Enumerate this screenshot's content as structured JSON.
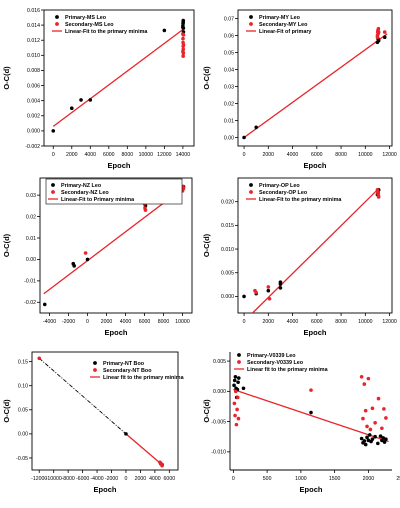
{
  "chart_data": [
    {
      "type": "scatter",
      "xlabel": "Epoch",
      "ylabel": "O-C(d)",
      "xlim": [
        -1000,
        15200
      ],
      "ylim": [
        -0.002,
        0.016
      ],
      "xticks": [
        0,
        2000,
        4000,
        6000,
        8000,
        10000,
        12000,
        14000
      ],
      "xtick_labels": [
        "0",
        "2000",
        "4000",
        "6000",
        "8000",
        "10000",
        "12000",
        "14000"
      ],
      "yticks": [
        -0.002,
        0.0,
        0.002,
        0.004,
        0.006,
        0.008,
        0.01,
        0.012,
        0.014,
        0.016
      ],
      "ytick_labels": [
        "-0.002",
        "0.000",
        "0.002",
        "0.004",
        "0.006",
        "0.008",
        "0.010",
        "0.012",
        "0.014",
        "0.016"
      ],
      "legend_position": "top-left",
      "series": [
        {
          "name": "Primary-MS Leo",
          "color": "#000000",
          "marker": "circle",
          "x": [
            0,
            2000,
            3000,
            4000,
            12000,
            14000,
            14000,
            14020,
            14030,
            14040,
            14050,
            14060
          ],
          "y": [
            0.0,
            0.003,
            0.0041,
            0.0041,
            0.0133,
            0.0137,
            0.0139,
            0.0142,
            0.0144,
            0.0146,
            0.0136,
            0.0131
          ]
        },
        {
          "name": "Secondary-MS Leo",
          "color": "#e8252a",
          "marker": "circle",
          "x": [
            14000,
            14010,
            14020,
            14030,
            14040,
            14050,
            14060,
            14070,
            14000,
            14030
          ],
          "y": [
            0.0128,
            0.0122,
            0.0117,
            0.0112,
            0.0108,
            0.0103,
            0.0127,
            0.0114,
            0.0105,
            0.0099
          ]
        },
        {
          "name": "Linear-Fit to the primary minima",
          "color": "#e8252a",
          "kind": "line",
          "x": [
            0,
            14200
          ],
          "y": [
            0.0006,
            0.0136
          ]
        }
      ]
    },
    {
      "type": "scatter",
      "xlabel": "Epoch",
      "ylabel": "O-C(d)",
      "xlim": [
        -500,
        12200
      ],
      "ylim": [
        -0.005,
        0.075
      ],
      "xticks": [
        0,
        2000,
        4000,
        6000,
        8000,
        10000,
        12000
      ],
      "xtick_labels": [
        "0",
        "2000",
        "4000",
        "6000",
        "8000",
        "10000",
        "12000"
      ],
      "yticks": [
        0.0,
        0.01,
        0.02,
        0.03,
        0.04,
        0.05,
        0.06,
        0.07
      ],
      "ytick_labels": [
        "0.00",
        "0.01",
        "0.02",
        "0.03",
        "0.04",
        "0.05",
        "0.06",
        "0.07"
      ],
      "legend_position": "top-left",
      "series": [
        {
          "name": "Primary-MY Leo",
          "color": "#000000",
          "marker": "circle",
          "x": [
            0,
            1000,
            11000,
            11050,
            11100,
            11600
          ],
          "y": [
            0.0,
            0.006,
            0.056,
            0.058,
            0.057,
            0.059
          ]
        },
        {
          "name": "Secondary-MY Leo",
          "color": "#e8252a",
          "marker": "circle",
          "x": [
            11000,
            11020,
            11040,
            11060,
            11080,
            11100,
            11000,
            11600
          ],
          "y": [
            0.06,
            0.062,
            0.063,
            0.061,
            0.064,
            0.062,
            0.059,
            0.062
          ]
        },
        {
          "name": "Linear-Fit of primary",
          "color": "#e8252a",
          "kind": "line",
          "x": [
            0,
            11800
          ],
          "y": [
            0.0,
            0.061
          ]
        }
      ]
    },
    {
      "type": "scatter",
      "xlabel": "Epoch",
      "ylabel": "O-C(d)",
      "xlim": [
        -5000,
        11000
      ],
      "ylim": [
        -0.025,
        0.038
      ],
      "xticks": [
        -4000,
        -2000,
        0,
        2000,
        4000,
        6000,
        8000,
        10000
      ],
      "xtick_labels": [
        "-4000",
        "-2000",
        "0",
        "2000",
        "4000",
        "6000",
        "8000",
        "10000"
      ],
      "yticks": [
        -0.02,
        -0.01,
        0.0,
        0.01,
        0.02,
        0.03
      ],
      "ytick_labels": [
        "-0.02",
        "-0.01",
        "0.00",
        "0.01",
        "0.02",
        "0.03"
      ],
      "legend_position": "top-left",
      "series": [
        {
          "name": "Primary-NZ Leo",
          "color": "#000000",
          "marker": "circle",
          "x": [
            -4500,
            -1500,
            -1400,
            0,
            6000,
            6100,
            10000,
            10100
          ],
          "y": [
            -0.021,
            -0.002,
            -0.003,
            0.0,
            0.027,
            0.025,
            0.033,
            0.034
          ]
        },
        {
          "name": "Secondary-NZ Leo",
          "color": "#e8252a",
          "marker": "circle",
          "x": [
            -200,
            6000,
            6050,
            6100,
            10000,
            10050,
            10100
          ],
          "y": [
            0.003,
            0.026,
            0.024,
            0.023,
            0.032,
            0.034,
            0.033
          ]
        },
        {
          "name": "Linear-Fit to Primary minima",
          "color": "#e8252a",
          "kind": "line",
          "x": [
            -4600,
            10300
          ],
          "y": [
            -0.016,
            0.034
          ]
        }
      ]
    },
    {
      "type": "scatter",
      "xlabel": "Epoch",
      "ylabel": "O-C(d)",
      "xlim": [
        -500,
        12200
      ],
      "ylim": [
        -0.0035,
        0.025
      ],
      "xticks": [
        0,
        2000,
        4000,
        6000,
        8000,
        10000,
        12000
      ],
      "xtick_labels": [
        "0",
        "2000",
        "4000",
        "6000",
        "8000",
        "10000",
        "12000"
      ],
      "yticks": [
        0.0,
        0.005,
        0.01,
        0.015,
        0.02
      ],
      "ytick_labels": [
        "0.000",
        "0.005",
        "0.010",
        "0.015",
        "0.020"
      ],
      "legend_position": "top-left",
      "series": [
        {
          "name": "Primary-OP Leo",
          "color": "#000000",
          "marker": "circle",
          "x": [
            0,
            1000,
            2000,
            3000,
            3000,
            3000,
            11000,
            11050,
            11100
          ],
          "y": [
            0.0,
            0.0006,
            0.0012,
            0.0018,
            0.0026,
            0.003,
            0.0215,
            0.022,
            0.0225
          ]
        },
        {
          "name": "Secondary-OP Leo",
          "color": "#e8252a",
          "marker": "circle",
          "x": [
            900,
            1000,
            2000,
            2100,
            11000,
            11020,
            11040,
            11060,
            11080,
            11100
          ],
          "y": [
            0.0012,
            0.0008,
            0.002,
            -0.0005,
            0.0225,
            0.0222,
            0.0219,
            0.0216,
            0.0213,
            0.021
          ]
        },
        {
          "name": "Linear-Fit to the primary minima",
          "color": "#e8252a",
          "kind": "line",
          "x": [
            700,
            11000
          ],
          "y": [
            -0.0035,
            0.0225
          ]
        }
      ]
    },
    {
      "type": "scatter",
      "xlabel": "Epoch",
      "ylabel": "O-C(d)",
      "xlim": [
        -13000,
        7200
      ],
      "ylim": [
        -0.075,
        0.17
      ],
      "xticks": [
        -12000,
        -10000,
        -8000,
        -6000,
        -4000,
        -2000,
        0,
        2000,
        4000,
        6000
      ],
      "xtick_labels": [
        "-12000",
        "-10000",
        "-8000",
        "-6000",
        "-4000",
        "-2000",
        "0",
        "2000",
        "4000",
        "6000"
      ],
      "yticks": [
        -0.05,
        0.0,
        0.05,
        0.1,
        0.15
      ],
      "ytick_labels": [
        "-0.05",
        "0.00",
        "0.05",
        "0.10",
        "0.15"
      ],
      "legend_position": "top-right",
      "series": [
        {
          "name": "Primary-NT Boo",
          "color": "#000000",
          "marker": "circle",
          "x": [
            0,
            4800,
            5000
          ],
          "y": [
            0.0,
            -0.061,
            -0.064
          ]
        },
        {
          "name": "Secondary-NT Boo",
          "color": "#e8252a",
          "marker": "circle",
          "x": [
            -12000,
            4700,
            4800,
            4900,
            5000
          ],
          "y": [
            0.157,
            -0.059,
            -0.062,
            -0.063,
            -0.066
          ]
        },
        {
          "name": "Linear fit to the primary minima",
          "color": "#e8252a",
          "kind": "line",
          "x": [
            0,
            5000
          ],
          "y": [
            0.0,
            -0.064
          ]
        }
      ],
      "extrapolation": {
        "color": "#000000",
        "dash": "dash-dot",
        "x": [
          -12000,
          0
        ],
        "y": [
          0.157,
          0.0
        ]
      }
    },
    {
      "type": "scatter",
      "xlabel": "Epoch",
      "ylabel": "O-C(d)",
      "xlim": [
        -50,
        2350
      ],
      "ylim": [
        -0.013,
        0.0065
      ],
      "xticks": [
        0,
        500,
        1000,
        1500,
        2000,
        2500
      ],
      "xtick_labels": [
        "0",
        "500",
        "1000",
        "1500",
        "2000",
        "2500"
      ],
      "yticks": [
        -0.01,
        -0.005,
        0.0,
        0.005
      ],
      "ytick_labels": [
        "-0.010",
        "-0.005",
        "0.000",
        "0.005"
      ],
      "legend_position": "top-left",
      "series": [
        {
          "name": "Primary-V0339 Leo",
          "color": "#000000",
          "marker": "circle",
          "x": [
            10,
            20,
            30,
            40,
            50,
            60,
            70,
            80,
            150,
            1150,
            1900,
            1920,
            1940,
            1960,
            1980,
            2000,
            2020,
            2040,
            2060,
            2100,
            2140,
            2180,
            2200,
            2220,
            2240,
            2260
          ],
          "y": [
            0.001,
            0.0018,
            0.0024,
            0.0005,
            -0.001,
            0.0003,
            0.0015,
            0.0022,
            0.0005,
            -0.0035,
            -0.0078,
            -0.0085,
            -0.0082,
            -0.0088,
            -0.0076,
            -0.0081,
            -0.0072,
            -0.0083,
            -0.0079,
            -0.0075,
            -0.0086,
            -0.0074,
            -0.0081,
            -0.0077,
            -0.0084,
            -0.0079
          ]
        },
        {
          "name": "Secondary-V0339 Leo",
          "color": "#e8252a",
          "marker": "circle",
          "x": [
            15,
            25,
            35,
            45,
            55,
            65,
            75,
            1150,
            1900,
            1920,
            1940,
            1960,
            1980,
            2000,
            2030,
            2060,
            2100,
            2150,
            2200,
            2230,
            2260
          ],
          "y": [
            -0.002,
            -0.004,
            0.0,
            -0.0055,
            -0.003,
            -0.001,
            -0.0045,
            0.0002,
            0.0024,
            -0.0045,
            0.0012,
            -0.0032,
            -0.0058,
            0.0021,
            -0.0063,
            -0.0028,
            -0.0052,
            -0.0012,
            -0.0061,
            -0.0029,
            -0.0044
          ]
        },
        {
          "name": "Linear fit to the primary minima",
          "color": "#e8252a",
          "kind": "line",
          "x": [
            0,
            2300
          ],
          "y": [
            0.0003,
            -0.0083
          ]
        }
      ]
    }
  ]
}
